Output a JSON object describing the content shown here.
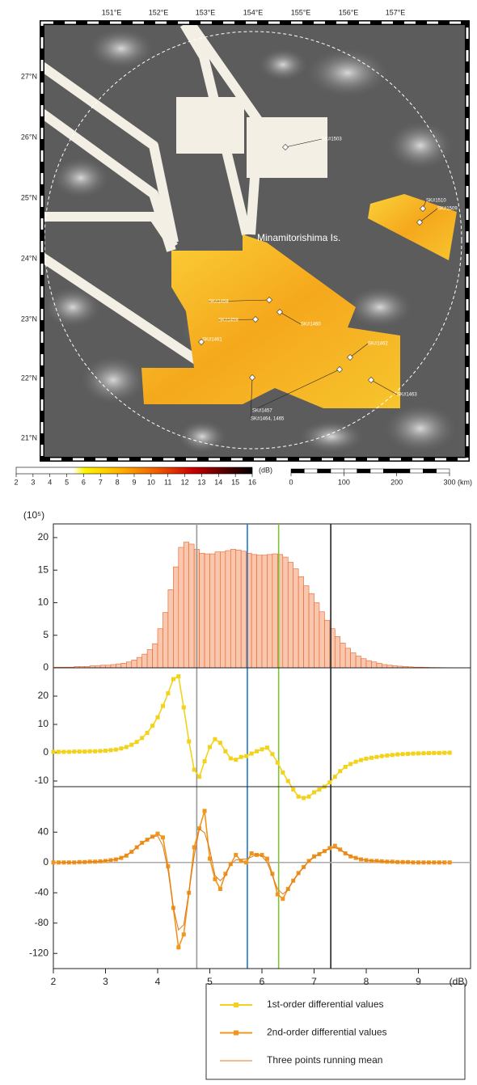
{
  "map": {
    "lon_labels": [
      "151°E",
      "152°E",
      "153°E",
      "154°E",
      "155°E",
      "156°E",
      "157°E"
    ],
    "lat_labels": [
      "27°N",
      "26°N",
      "25°N",
      "24°N",
      "23°N",
      "22°N",
      "21°N"
    ],
    "place_label": "Minamitorishima Is.",
    "cruise_labels": [
      "SK#1503",
      "SK#1510",
      "SK#1509",
      "SK#1458",
      "SK#1459",
      "SK#1461",
      "SK#1460",
      "SK#1462",
      "SK#1463",
      "SK#1457",
      "SK#1464, 1465"
    ],
    "colorbar": {
      "ticks": [
        2,
        3,
        4,
        5,
        6,
        7,
        8,
        9,
        10,
        11,
        12,
        13,
        14,
        15,
        16
      ],
      "unit": "(dB)"
    },
    "scale_bar": {
      "ticks": [
        0,
        100,
        200,
        300
      ],
      "unit": "(km)"
    }
  },
  "chart_data": [
    {
      "type": "histogram",
      "y_unit": "(10⁵)",
      "color": "#f9c7ad",
      "edge_color": "#e8622a",
      "xlim": [
        2,
        10
      ],
      "ylim": [
        0,
        22.1
      ],
      "yticks": [
        0,
        5,
        10,
        15,
        20
      ],
      "bins": [
        2.0,
        2.1,
        2.2,
        2.3,
        2.4,
        2.5,
        2.6,
        2.7,
        2.8,
        2.9,
        3.0,
        3.1,
        3.2,
        3.3,
        3.4,
        3.5,
        3.6,
        3.7,
        3.8,
        3.9,
        4.0,
        4.1,
        4.2,
        4.3,
        4.4,
        4.5,
        4.6,
        4.7,
        4.8,
        4.9,
        5.0,
        5.1,
        5.2,
        5.3,
        5.4,
        5.5,
        5.6,
        5.7,
        5.8,
        5.9,
        6.0,
        6.1,
        6.2,
        6.3,
        6.4,
        6.5,
        6.6,
        6.7,
        6.8,
        6.9,
        7.0,
        7.1,
        7.2,
        7.3,
        7.4,
        7.5,
        7.6,
        7.7,
        7.8,
        7.9,
        8.0,
        8.1,
        8.2,
        8.3,
        8.4,
        8.5,
        8.6,
        8.7,
        8.8,
        8.9,
        9.0,
        9.1,
        9.2,
        9.3,
        9.4,
        9.5,
        9.6,
        9.7,
        9.8,
        9.9,
        10.0
      ],
      "values": [
        0.1,
        0.1,
        0.1,
        0.1,
        0.2,
        0.2,
        0.2,
        0.3,
        0.3,
        0.4,
        0.4,
        0.5,
        0.6,
        0.7,
        0.9,
        1.2,
        1.6,
        2.1,
        2.8,
        3.7,
        6.0,
        8.5,
        12.0,
        15.5,
        18.5,
        19.3,
        19.0,
        18.2,
        17.6,
        17.5,
        17.5,
        17.8,
        17.8,
        18.0,
        18.2,
        18.1,
        17.9,
        17.6,
        17.4,
        17.3,
        17.3,
        17.4,
        17.5,
        17.4,
        17.0,
        16.2,
        15.2,
        14.0,
        12.6,
        11.4,
        10.0,
        8.6,
        7.3,
        6.0,
        4.8,
        3.8,
        3.0,
        2.3,
        1.8,
        1.4,
        1.1,
        0.9,
        0.7,
        0.5,
        0.4,
        0.3,
        0.25,
        0.2,
        0.15,
        0.1,
        0.1,
        0.08,
        0.06,
        0.05,
        0.04,
        0.03,
        0.02,
        0.02,
        0.01,
        0.01
      ],
      "reference_lines": [
        {
          "x": 4.75,
          "color": "#999999"
        },
        {
          "x": 5.72,
          "color": "#1f78c8"
        },
        {
          "x": 6.32,
          "color": "#7cc234"
        },
        {
          "x": 7.32,
          "color": "#222222"
        }
      ]
    },
    {
      "type": "line",
      "xlim": [
        2,
        10
      ],
      "ylim": [
        -12,
        30
      ],
      "yticks": [
        -10,
        0,
        10,
        20
      ],
      "x": [
        2.0,
        2.1,
        2.2,
        2.3,
        2.4,
        2.5,
        2.6,
        2.7,
        2.8,
        2.9,
        3.0,
        3.1,
        3.2,
        3.3,
        3.4,
        3.5,
        3.6,
        3.7,
        3.8,
        3.9,
        4.0,
        4.1,
        4.2,
        4.3,
        4.4,
        4.5,
        4.6,
        4.7,
        4.8,
        4.9,
        5.0,
        5.1,
        5.2,
        5.3,
        5.4,
        5.5,
        5.6,
        5.7,
        5.8,
        5.9,
        6.0,
        6.1,
        6.2,
        6.3,
        6.4,
        6.5,
        6.6,
        6.7,
        6.8,
        6.9,
        7.0,
        7.1,
        7.2,
        7.3,
        7.4,
        7.5,
        7.6,
        7.7,
        7.8,
        7.9,
        8.0,
        8.1,
        8.2,
        8.3,
        8.4,
        8.5,
        8.6,
        8.7,
        8.8,
        8.9,
        9.0,
        9.1,
        9.2,
        9.3,
        9.4,
        9.5,
        9.6
      ],
      "series": [
        {
          "name": "1st-order differential values",
          "color": "#f2d21b",
          "marker": "square",
          "values": [
            0.3,
            0.3,
            0.3,
            0.3,
            0.4,
            0.4,
            0.4,
            0.5,
            0.5,
            0.6,
            0.7,
            0.9,
            1.1,
            1.5,
            2.0,
            2.8,
            3.8,
            5.2,
            7.0,
            9.5,
            12.5,
            16.5,
            21,
            26,
            27,
            16,
            4,
            -6,
            -8.5,
            -3,
            2,
            4.8,
            3.5,
            0.5,
            -2,
            -2.5,
            -1.5,
            -1.2,
            -0.3,
            0.5,
            1.2,
            1.8,
            -0.5,
            -3.5,
            -7,
            -10,
            -13,
            -15.5,
            -16,
            -15.5,
            -14,
            -13,
            -12,
            -10.5,
            -8.5,
            -6.5,
            -5,
            -4,
            -3.2,
            -2.6,
            -2.1,
            -1.8,
            -1.5,
            -1.2,
            -1,
            -0.8,
            -0.6,
            -0.5,
            -0.4,
            -0.3,
            -0.25,
            -0.2,
            -0.15,
            -0.1,
            -0.1,
            -0.05,
            0
          ]
        }
      ]
    },
    {
      "type": "line",
      "xlim": [
        2,
        10
      ],
      "ylim": [
        -140,
        100
      ],
      "yticks": [
        -120,
        -80,
        -40,
        0,
        40
      ],
      "zero_line": true,
      "xticks": [
        2,
        3,
        4,
        5,
        6,
        7,
        8,
        9
      ],
      "xlabel": "(dB)",
      "x": [
        2.0,
        2.1,
        2.2,
        2.3,
        2.4,
        2.5,
        2.6,
        2.7,
        2.8,
        2.9,
        3.0,
        3.1,
        3.2,
        3.3,
        3.4,
        3.5,
        3.6,
        3.7,
        3.8,
        3.9,
        4.0,
        4.1,
        4.2,
        4.3,
        4.4,
        4.5,
        4.6,
        4.7,
        4.8,
        4.9,
        5.0,
        5.1,
        5.2,
        5.3,
        5.4,
        5.5,
        5.6,
        5.7,
        5.8,
        5.9,
        6.0,
        6.1,
        6.2,
        6.3,
        6.4,
        6.5,
        6.6,
        6.7,
        6.8,
        6.9,
        7.0,
        7.1,
        7.2,
        7.3,
        7.4,
        7.5,
        7.6,
        7.7,
        7.8,
        7.9,
        8.0,
        8.1,
        8.2,
        8.3,
        8.4,
        8.5,
        8.6,
        8.7,
        8.8,
        8.9,
        9.0,
        9.1,
        9.2,
        9.3,
        9.4,
        9.5,
        9.6
      ],
      "series": [
        {
          "name": "2nd-order differential values",
          "color": "#f0961e",
          "marker": "square",
          "values": [
            0,
            0,
            0,
            0,
            0,
            0.5,
            0.5,
            1,
            1,
            1.5,
            2,
            3,
            4,
            6,
            9,
            14,
            20,
            26,
            30,
            34,
            38,
            33,
            -5,
            -60,
            -112,
            -95,
            -40,
            20,
            45,
            68,
            5,
            -22,
            -35,
            -15,
            -2,
            10,
            2,
            0,
            12,
            10,
            10,
            5,
            -15,
            -42,
            -48,
            -35,
            -24,
            -14,
            -6,
            2,
            8,
            11,
            15,
            19,
            22,
            17,
            12,
            8,
            6,
            4,
            3,
            2,
            2,
            1.5,
            1,
            1,
            0.5,
            0.5,
            0.5,
            0,
            0,
            0,
            0,
            0,
            0,
            0,
            0
          ]
        },
        {
          "name": "Three points running mean",
          "color": "#e07a1a",
          "marker": "none",
          "values": [
            null,
            0,
            0,
            0,
            0.2,
            0.3,
            0.7,
            0.8,
            1.2,
            1.5,
            2.2,
            3,
            4.3,
            6.3,
            9.7,
            14.3,
            20,
            25.3,
            30,
            34,
            35,
            22,
            -10.7,
            -59,
            -89,
            -82.3,
            -38.3,
            8.3,
            44.3,
            39.3,
            17,
            -17.3,
            -24,
            -17.3,
            -2.3,
            3.3,
            4,
            4.7,
            7.3,
            10.7,
            8.3,
            0,
            -17.3,
            -35,
            -41.7,
            -35.7,
            -24.3,
            -14.7,
            -6,
            1.3,
            7,
            11.3,
            15,
            18.7,
            19.3,
            17,
            12.3,
            8.7,
            6,
            4.3,
            3,
            2.3,
            1.8,
            1.5,
            1.2,
            0.8,
            0.7,
            0.5,
            0.3,
            0.2,
            0,
            0,
            0,
            0,
            0,
            0,
            null
          ]
        }
      ]
    }
  ]
}
